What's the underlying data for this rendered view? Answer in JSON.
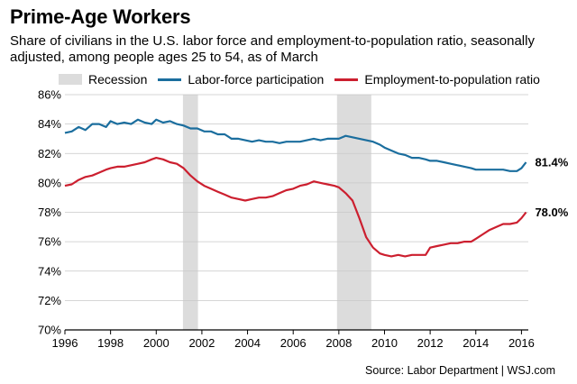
{
  "chart_data": {
    "type": "line",
    "title": "Prime-Age Workers",
    "subtitle": "Share of civilians in the U.S. labor force and employment-to-population ratio, seasonally adjusted, among people ages 25 to 54, as of March",
    "xlabel": "",
    "ylabel": "",
    "xlim": [
      1996,
      2016.3
    ],
    "ylim": [
      70,
      86
    ],
    "x_ticks": [
      1996,
      1998,
      2000,
      2002,
      2004,
      2006,
      2008,
      2010,
      2012,
      2014,
      2016
    ],
    "y_ticks": [
      70,
      72,
      74,
      76,
      78,
      80,
      82,
      84,
      86
    ],
    "y_tick_suffix": "%",
    "grid": true,
    "legend": [
      {
        "label": "Recession",
        "color": "#dcdcdc",
        "kind": "band"
      },
      {
        "label": "Labor-force participation",
        "color": "#1b6e9e",
        "kind": "line"
      },
      {
        "label": "Employment-to-population ratio",
        "color": "#cc1f2f",
        "kind": "line"
      }
    ],
    "recessions": [
      [
        2001.17,
        2001.83
      ],
      [
        2007.92,
        2009.42
      ]
    ],
    "series": [
      {
        "name": "Labor-force participation",
        "color": "#1b6e9e",
        "end_label": "81.4%",
        "points": [
          [
            1996.0,
            83.4
          ],
          [
            1996.3,
            83.5
          ],
          [
            1996.6,
            83.8
          ],
          [
            1996.9,
            83.6
          ],
          [
            1997.2,
            84.0
          ],
          [
            1997.5,
            84.0
          ],
          [
            1997.8,
            83.8
          ],
          [
            1998.0,
            84.2
          ],
          [
            1998.3,
            84.0
          ],
          [
            1998.6,
            84.1
          ],
          [
            1998.9,
            84.0
          ],
          [
            1999.2,
            84.3
          ],
          [
            1999.5,
            84.1
          ],
          [
            1999.8,
            84.0
          ],
          [
            2000.0,
            84.3
          ],
          [
            2000.3,
            84.1
          ],
          [
            2000.6,
            84.2
          ],
          [
            2000.9,
            84.0
          ],
          [
            2001.2,
            83.9
          ],
          [
            2001.5,
            83.7
          ],
          [
            2001.8,
            83.7
          ],
          [
            2002.1,
            83.5
          ],
          [
            2002.4,
            83.5
          ],
          [
            2002.7,
            83.3
          ],
          [
            2003.0,
            83.3
          ],
          [
            2003.3,
            83.0
          ],
          [
            2003.6,
            83.0
          ],
          [
            2003.9,
            82.9
          ],
          [
            2004.2,
            82.8
          ],
          [
            2004.5,
            82.9
          ],
          [
            2004.8,
            82.8
          ],
          [
            2005.1,
            82.8
          ],
          [
            2005.4,
            82.7
          ],
          [
            2005.7,
            82.8
          ],
          [
            2006.0,
            82.8
          ],
          [
            2006.3,
            82.8
          ],
          [
            2006.6,
            82.9
          ],
          [
            2006.9,
            83.0
          ],
          [
            2007.2,
            82.9
          ],
          [
            2007.5,
            83.0
          ],
          [
            2007.8,
            83.0
          ],
          [
            2008.0,
            83.0
          ],
          [
            2008.3,
            83.2
          ],
          [
            2008.6,
            83.1
          ],
          [
            2008.9,
            83.0
          ],
          [
            2009.2,
            82.9
          ],
          [
            2009.5,
            82.8
          ],
          [
            2009.8,
            82.6
          ],
          [
            2010.0,
            82.4
          ],
          [
            2010.3,
            82.2
          ],
          [
            2010.6,
            82.0
          ],
          [
            2010.9,
            81.9
          ],
          [
            2011.2,
            81.7
          ],
          [
            2011.5,
            81.7
          ],
          [
            2011.8,
            81.6
          ],
          [
            2012.0,
            81.5
          ],
          [
            2012.3,
            81.5
          ],
          [
            2012.6,
            81.4
          ],
          [
            2012.9,
            81.3
          ],
          [
            2013.2,
            81.2
          ],
          [
            2013.5,
            81.1
          ],
          [
            2013.8,
            81.0
          ],
          [
            2014.0,
            80.9
          ],
          [
            2014.3,
            80.9
          ],
          [
            2014.6,
            80.9
          ],
          [
            2014.9,
            80.9
          ],
          [
            2015.2,
            80.9
          ],
          [
            2015.5,
            80.8
          ],
          [
            2015.8,
            80.8
          ],
          [
            2016.0,
            81.0
          ],
          [
            2016.2,
            81.4
          ]
        ]
      },
      {
        "name": "Employment-to-population ratio",
        "color": "#cc1f2f",
        "end_label": "78.0%",
        "points": [
          [
            1996.0,
            79.8
          ],
          [
            1996.3,
            79.9
          ],
          [
            1996.6,
            80.2
          ],
          [
            1996.9,
            80.4
          ],
          [
            1997.2,
            80.5
          ],
          [
            1997.5,
            80.7
          ],
          [
            1997.8,
            80.9
          ],
          [
            1998.0,
            81.0
          ],
          [
            1998.3,
            81.1
          ],
          [
            1998.6,
            81.1
          ],
          [
            1998.9,
            81.2
          ],
          [
            1999.2,
            81.3
          ],
          [
            1999.5,
            81.4
          ],
          [
            1999.8,
            81.6
          ],
          [
            2000.0,
            81.7
          ],
          [
            2000.3,
            81.6
          ],
          [
            2000.6,
            81.4
          ],
          [
            2000.9,
            81.3
          ],
          [
            2001.2,
            81.0
          ],
          [
            2001.5,
            80.5
          ],
          [
            2001.8,
            80.1
          ],
          [
            2002.1,
            79.8
          ],
          [
            2002.4,
            79.6
          ],
          [
            2002.7,
            79.4
          ],
          [
            2003.0,
            79.2
          ],
          [
            2003.3,
            79.0
          ],
          [
            2003.6,
            78.9
          ],
          [
            2003.9,
            78.8
          ],
          [
            2004.2,
            78.9
          ],
          [
            2004.5,
            79.0
          ],
          [
            2004.8,
            79.0
          ],
          [
            2005.1,
            79.1
          ],
          [
            2005.4,
            79.3
          ],
          [
            2005.7,
            79.5
          ],
          [
            2006.0,
            79.6
          ],
          [
            2006.3,
            79.8
          ],
          [
            2006.6,
            79.9
          ],
          [
            2006.9,
            80.1
          ],
          [
            2007.2,
            80.0
          ],
          [
            2007.5,
            79.9
          ],
          [
            2007.8,
            79.8
          ],
          [
            2008.0,
            79.7
          ],
          [
            2008.3,
            79.3
          ],
          [
            2008.6,
            78.8
          ],
          [
            2008.9,
            77.6
          ],
          [
            2009.2,
            76.3
          ],
          [
            2009.5,
            75.6
          ],
          [
            2009.8,
            75.2
          ],
          [
            2010.0,
            75.1
          ],
          [
            2010.3,
            75.0
          ],
          [
            2010.6,
            75.1
          ],
          [
            2010.9,
            75.0
          ],
          [
            2011.2,
            75.1
          ],
          [
            2011.5,
            75.1
          ],
          [
            2011.8,
            75.1
          ],
          [
            2012.0,
            75.6
          ],
          [
            2012.3,
            75.7
          ],
          [
            2012.6,
            75.8
          ],
          [
            2012.9,
            75.9
          ],
          [
            2013.2,
            75.9
          ],
          [
            2013.5,
            76.0
          ],
          [
            2013.8,
            76.0
          ],
          [
            2014.0,
            76.2
          ],
          [
            2014.3,
            76.5
          ],
          [
            2014.6,
            76.8
          ],
          [
            2014.9,
            77.0
          ],
          [
            2015.2,
            77.2
          ],
          [
            2015.5,
            77.2
          ],
          [
            2015.8,
            77.3
          ],
          [
            2016.0,
            77.6
          ],
          [
            2016.2,
            78.0
          ]
        ]
      }
    ],
    "source": "Source: Labor Department  |  WSJ.com"
  }
}
